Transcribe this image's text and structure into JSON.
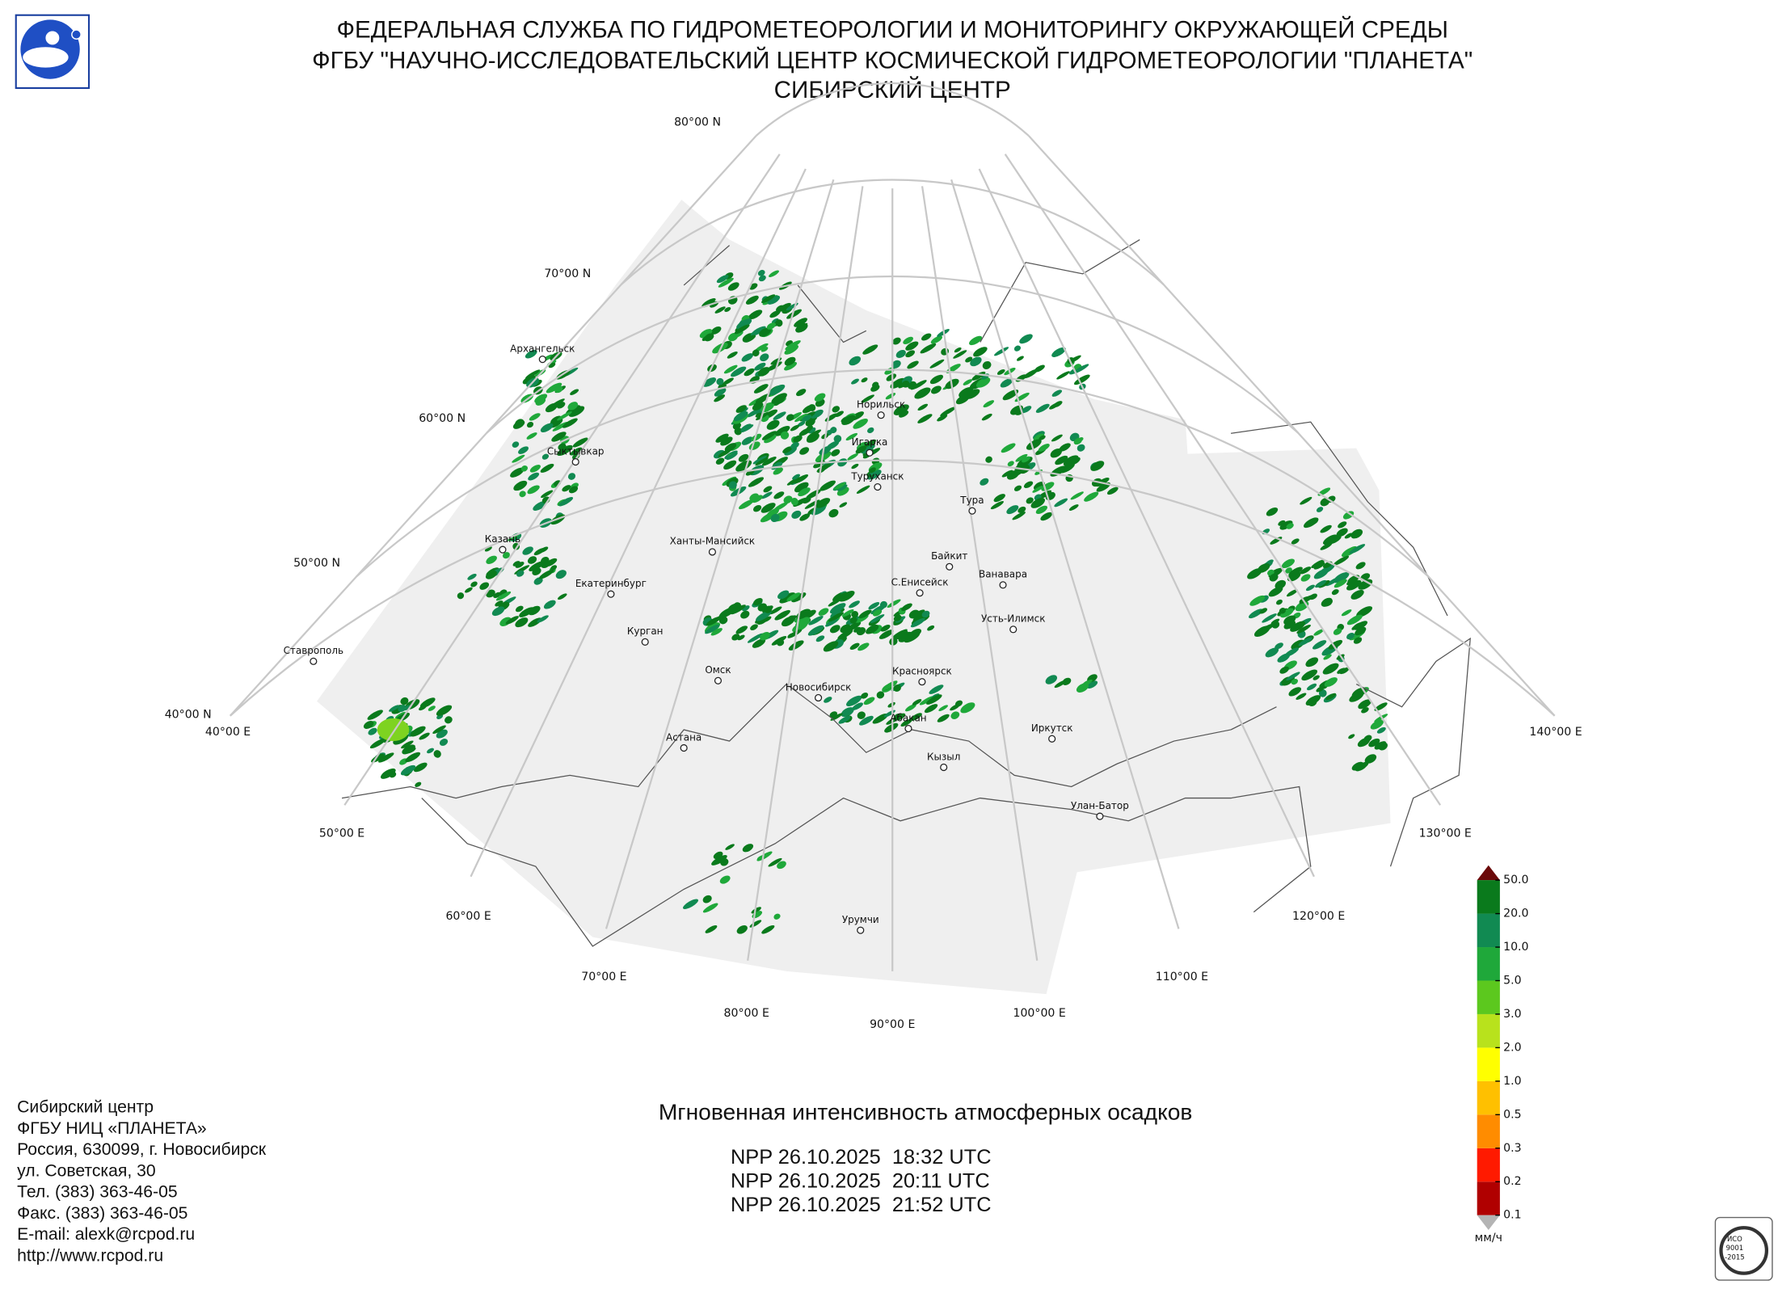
{
  "header": {
    "lines": [
      "ФЕДЕРАЛЬНАЯ СЛУЖБА ПО ГИДРОМЕТЕОРОЛОГИИ И МОНИТОРИНГУ ОКРУЖАЮЩЕЙ СРЕДЫ",
      "ФГБУ \"НАУЧНО-ИССЛЕДОВАТЕЛЬСКИЙ ЦЕНТР КОСМИЧЕСКОЙ ГИДРОМЕТЕОРОЛОГИИ \"ПЛАНЕТА\"",
      "СИБИРСКИЙ ЦЕНТР"
    ]
  },
  "map": {
    "parallels": [
      "80°00 N",
      "70°00 N",
      "60°00 N",
      "50°00 N",
      "40°00 N"
    ],
    "meridians": [
      "40°00 E",
      "50°00 E",
      "60°00 E",
      "70°00 E",
      "80°00 E",
      "90°00 E",
      "100°00 E",
      "110°00 E",
      "120°00 E",
      "130°00 E",
      "140°00 E"
    ],
    "cities": [
      "Архангельск",
      "Сыктывкар",
      "Казань",
      "Екатеринбург",
      "Курган",
      "Ставрополь",
      "Ханты-Мансийск",
      "Омск",
      "Новосибирск",
      "Астана",
      "Норильск",
      "Игарка",
      "Туруханск",
      "Тура",
      "Байкит",
      "Ванавара",
      "С.Енисейск",
      "Усть-Илимск",
      "Красноярск",
      "Абакан",
      "Кызыл",
      "Иркутск",
      "Улан-Батор",
      "Урумчи"
    ]
  },
  "legend": {
    "labels": [
      "50.0",
      "20.0",
      "10.0",
      "5.0",
      "3.0",
      "2.0",
      "1.0",
      "0.5",
      "0.3",
      "0.2",
      "0.1"
    ],
    "colors": [
      "#b00000",
      "#ff1a00",
      "#ff8c00",
      "#ffc000",
      "#ffff00",
      "#b8e21c",
      "#5cc81e",
      "#1fa83a",
      "#118a52",
      "#0a7a1c"
    ],
    "over_color": "#6b0a0a",
    "under_color": "#b4b4b4",
    "unit": "мм/ч"
  },
  "product": {
    "title": "Мгновенная интенсивность атмосферных осадков",
    "passes": [
      "NPP 26.10.2025  18:32 UTC",
      "NPP 26.10.2025  20:11 UTC",
      "NPP 26.10.2025  21:52 UTC"
    ]
  },
  "contact": {
    "lines": [
      "Сибирский центр",
      "ФГБУ НИЦ «ПЛАНЕТА»",
      "Россия, 630099, г. Новосибирск",
      "ул. Советская, 30",
      "Тел. (383) 363-46-05",
      "Факс. (383) 363-46-05",
      "E-mail: alexk@rcpod.ru",
      "http://www.rcpod.ru"
    ]
  },
  "certificate": {
    "lines": [
      "ИСО",
      "9001",
      "-2015"
    ]
  }
}
